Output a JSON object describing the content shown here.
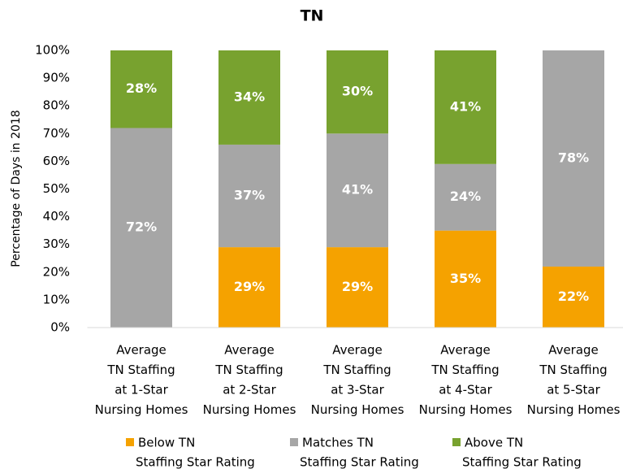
{
  "chart_data": {
    "type": "stacked_bar",
    "title": "TN",
    "y_label": "Percentage of Days in 2018",
    "categories": [
      [
        "Average",
        "TN Staffing",
        "at 1-Star",
        "Nursing Homes"
      ],
      [
        "Average",
        "TN Staffing",
        "at 2-Star",
        "Nursing Homes"
      ],
      [
        "Average",
        "TN Staffing",
        "at 3-Star",
        "Nursing Homes"
      ],
      [
        "Average",
        "TN Staffing",
        "at 4-Star",
        "Nursing Homes"
      ],
      [
        "Average",
        "TN Staffing",
        "at 5-Star",
        "Nursing Homes"
      ]
    ],
    "series": [
      {
        "name": [
          "Below TN",
          "Staffing Star Rating"
        ],
        "color": "#f5a200",
        "values": [
          0,
          29,
          29,
          35,
          22
        ],
        "value_labels": [
          null,
          "29%",
          "29%",
          "35%",
          "22%"
        ]
      },
      {
        "name": [
          "Matches TN",
          "Staffing Star Rating"
        ],
        "color": "#a6a6a6",
        "values": [
          72,
          37,
          41,
          24,
          78
        ],
        "value_labels": [
          "72%",
          "37%",
          "41%",
          "24%",
          "78%"
        ]
      },
      {
        "name": [
          "Above TN",
          "Staffing Star Rating"
        ],
        "color": "#78a22f",
        "values": [
          28,
          34,
          30,
          41,
          0
        ],
        "value_labels": [
          "28%",
          "34%",
          "30%",
          "41%",
          null
        ]
      }
    ],
    "ylim": [
      0,
      100
    ],
    "yticks": [
      {
        "value": 0,
        "label": "0%"
      },
      {
        "value": 10,
        "label": "10%"
      },
      {
        "value": 20,
        "label": "20%"
      },
      {
        "value": 30,
        "label": "30%"
      },
      {
        "value": 40,
        "label": "40%"
      },
      {
        "value": 50,
        "label": "50%"
      },
      {
        "value": 60,
        "label": "60%"
      },
      {
        "value": 70,
        "label": "70%"
      },
      {
        "value": 80,
        "label": "80%"
      },
      {
        "value": 90,
        "label": "90%"
      },
      {
        "value": 100,
        "label": "100%"
      }
    ],
    "grid": false,
    "legend": "bottom"
  }
}
